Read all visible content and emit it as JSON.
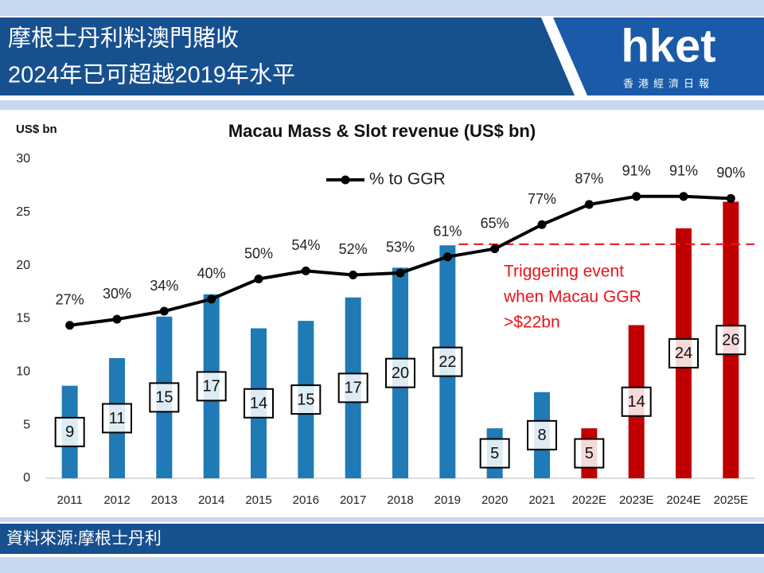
{
  "header": {
    "title_lines": [
      "摩根士丹利料澳門賭收",
      "2024年已可超越2019年水平"
    ],
    "logo": "hket",
    "logo_subtitle": "香港經濟日報"
  },
  "chart_data": {
    "type": "bar_line",
    "title": "Macau Mass & Slot revenue (US$ bn)",
    "y_label": "US$ bn",
    "categories": [
      "2011",
      "2012",
      "2013",
      "2014",
      "2015",
      "2016",
      "2017",
      "2018",
      "2019",
      "2020",
      "2021",
      "2022E",
      "2023E",
      "2024E",
      "2025E"
    ],
    "ylim": [
      0,
      30
    ],
    "yticks": [
      0,
      5,
      10,
      15,
      20,
      25,
      30
    ],
    "y2lim": [
      -49,
      109.5
    ],
    "grid": false,
    "legend": "top",
    "series": [
      {
        "values": [
          8.7,
          11.3,
          15.2,
          17.3,
          14.1,
          14.8,
          17.0,
          19.8,
          21.9,
          4.7,
          8.1,
          4.7,
          14.4,
          23.5,
          26.0
        ],
        "value_labels": [
          "9",
          "11",
          "15",
          "17",
          "14",
          "15",
          "17",
          "20",
          "22",
          "5",
          "8",
          "5",
          "14",
          "24",
          "26"
        ],
        "colors": [
          "#1f7ab5",
          "#1f7ab5",
          "#1f7ab5",
          "#1f7ab5",
          "#1f7ab5",
          "#1f7ab5",
          "#1f7ab5",
          "#1f7ab5",
          "#1f7ab5",
          "#1f7ab5",
          "#1f7ab5",
          "#c00000",
          "#c00000",
          "#c00000",
          "#c00000"
        ]
      },
      {
        "name": "% to GGR",
        "axis": "y2",
        "color": "#000000",
        "values": [
          27,
          30,
          34,
          40,
          50,
          54,
          52,
          53,
          61,
          65,
          77,
          87,
          91,
          91,
          90
        ],
        "value_labels": [
          "27%",
          "30%",
          "34%",
          "40%",
          "50%",
          "54%",
          "52%",
          "53%",
          "61%",
          "65%",
          "77%",
          "87%",
          "91%",
          "91%",
          "90%"
        ]
      }
    ],
    "annotation": {
      "lines": [
        "Triggering event",
        "when Macau GGR",
        ">$22bn"
      ],
      "value": 22,
      "color": "#e8141a"
    }
  },
  "footer": {
    "source": "資料來源:摩根士丹利"
  }
}
